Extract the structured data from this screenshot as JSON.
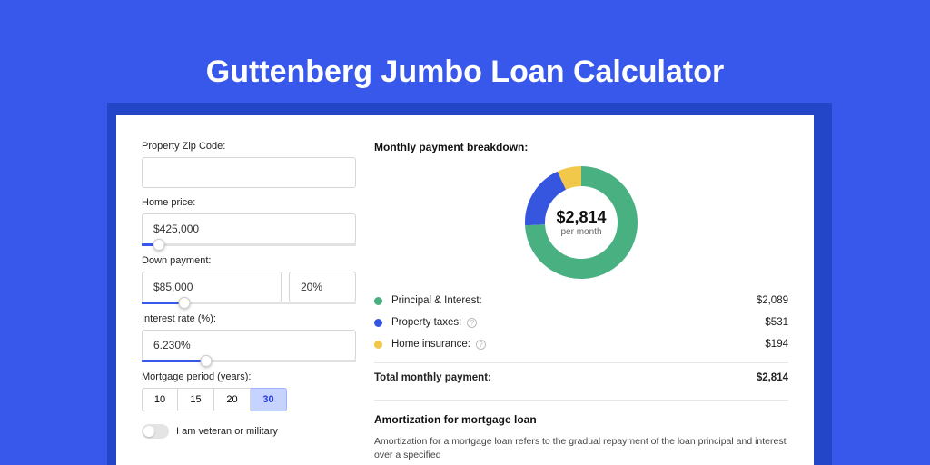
{
  "page": {
    "title": "Guttenberg Jumbo Loan Calculator",
    "background_color": "#3858ec",
    "shadow_color": "#2345c8"
  },
  "form": {
    "zip": {
      "label": "Property Zip Code:",
      "value": ""
    },
    "home_price": {
      "label": "Home price:",
      "value": "$425,000",
      "slider_pct": 8
    },
    "down_payment": {
      "label": "Down payment:",
      "amount": "$85,000",
      "percent": "20%",
      "slider_pct": 20
    },
    "interest_rate": {
      "label": "Interest rate (%):",
      "value": "6.230%",
      "slider_pct": 30
    },
    "period": {
      "label": "Mortgage period (years):",
      "options": [
        "10",
        "15",
        "20",
        "30"
      ],
      "active_index": 3
    },
    "veteran": {
      "label": "I am veteran or military",
      "on": false
    }
  },
  "breakdown": {
    "title": "Monthly payment breakdown:",
    "center_value": "$2,814",
    "center_sub": "per month",
    "donut": {
      "size": 124,
      "thickness": 22,
      "slices": [
        {
          "label": "Principal & Interest:",
          "value": "$2,089",
          "color": "#49b082",
          "deg": 267,
          "info": false
        },
        {
          "label": "Property taxes:",
          "value": "$531",
          "color": "#3756df",
          "deg": 68,
          "info": true
        },
        {
          "label": "Home insurance:",
          "value": "$194",
          "color": "#f2c84b",
          "deg": 25,
          "info": true
        }
      ]
    },
    "total_label": "Total monthly payment:",
    "total_value": "$2,814"
  },
  "amortization": {
    "heading": "Amortization for mortgage loan",
    "text": "Amortization for a mortgage loan refers to the gradual repayment of the loan principal and interest over a specified"
  }
}
